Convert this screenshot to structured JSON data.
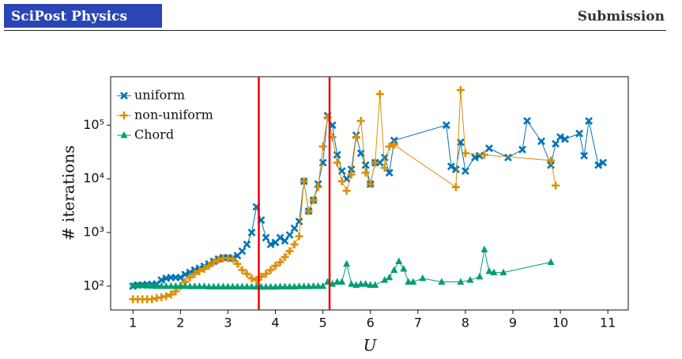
{
  "header": {
    "journal": "SciPost Physics",
    "status": "Submission"
  },
  "chart_data": {
    "type": "line",
    "xlabel": "U",
    "ylabel": "# iterations",
    "log_y": true,
    "legend": "upper left",
    "xlim": [
      0.53,
      11.43
    ],
    "xticks": [
      1,
      2,
      3,
      4,
      5,
      6,
      7,
      8,
      9,
      10,
      11
    ],
    "ylim": [
      36,
      800000
    ],
    "yticks": [
      {
        "value": 100,
        "label": "10²"
      },
      {
        "value": 1000,
        "label": "10³"
      },
      {
        "value": 10000,
        "label": "10⁴"
      },
      {
        "value": 100000,
        "label": "10⁵"
      }
    ],
    "vlines": [
      3.65,
      5.14
    ],
    "vline_color": "#e8000b",
    "series": [
      {
        "name": "uniform",
        "color": "#0173b2",
        "marker": "x",
        "x": [
          1.0,
          1.1,
          1.2,
          1.3,
          1.4,
          1.5,
          1.6,
          1.7,
          1.8,
          1.9,
          2.0,
          2.1,
          2.2,
          2.3,
          2.4,
          2.5,
          2.6,
          2.7,
          2.8,
          2.9,
          3.0,
          3.1,
          3.2,
          3.3,
          3.4,
          3.5,
          3.6,
          3.7,
          3.8,
          3.9,
          4.0,
          4.1,
          4.2,
          4.3,
          4.4,
          4.5,
          4.6,
          4.7,
          4.8,
          4.9,
          5.0,
          5.1,
          5.2,
          5.3,
          5.4,
          5.5,
          5.6,
          5.7,
          5.8,
          5.9,
          6.0,
          6.1,
          6.2,
          6.3,
          6.4,
          6.5,
          7.6,
          7.7,
          7.8,
          7.9,
          8.0,
          8.2,
          8.3,
          8.5,
          8.9,
          9.2,
          9.3,
          9.6,
          9.8,
          9.9,
          10.0,
          10.1,
          10.4,
          10.5,
          10.6,
          10.8,
          10.9
        ],
        "values": [
          100,
          105,
          105,
          108,
          108,
          110,
          130,
          140,
          145,
          145,
          145,
          165,
          180,
          200,
          215,
          235,
          260,
          290,
          320,
          340,
          340,
          330,
          370,
          450,
          600,
          1000,
          3000,
          1700,
          800,
          600,
          650,
          800,
          700,
          900,
          1200,
          1600,
          9000,
          2500,
          4000,
          8000,
          20000,
          150000,
          100000,
          28000,
          14000,
          10000,
          15000,
          65000,
          30000,
          18000,
          8000,
          20000,
          20000,
          25000,
          13000,
          52000,
          100000,
          17000,
          15000,
          48000,
          14000,
          25000,
          27000,
          37000,
          25000,
          35000,
          120000,
          50000,
          18000,
          45000,
          60000,
          55000,
          70000,
          27000,
          120000,
          18000,
          20000
        ]
      },
      {
        "name": "non-uniform",
        "color": "#de8f05",
        "marker": "plus",
        "x": [
          1.0,
          1.1,
          1.2,
          1.3,
          1.4,
          1.5,
          1.6,
          1.7,
          1.8,
          1.9,
          2.0,
          2.1,
          2.2,
          2.3,
          2.4,
          2.5,
          2.6,
          2.7,
          2.8,
          2.9,
          3.0,
          3.1,
          3.2,
          3.3,
          3.4,
          3.5,
          3.6,
          3.7,
          3.8,
          3.9,
          4.0,
          4.1,
          4.2,
          4.3,
          4.4,
          4.5,
          4.6,
          4.7,
          4.8,
          4.9,
          5.0,
          5.1,
          5.2,
          5.3,
          5.4,
          5.5,
          5.6,
          5.7,
          5.8,
          5.9,
          6.0,
          6.1,
          6.2,
          6.3,
          6.4,
          6.5,
          7.8,
          7.9,
          8.0,
          8.4,
          9.8,
          9.9
        ],
        "values": [
          57,
          57,
          57,
          57,
          57,
          60,
          62,
          65,
          70,
          80,
          100,
          120,
          145,
          170,
          190,
          210,
          240,
          280,
          310,
          330,
          330,
          320,
          260,
          200,
          170,
          140,
          130,
          150,
          170,
          200,
          240,
          280,
          350,
          450,
          600,
          850,
          9000,
          2500,
          4000,
          7000,
          40000,
          140000,
          60000,
          20000,
          9000,
          6000,
          12000,
          60000,
          120000,
          13000,
          8000,
          20000,
          380000,
          16000,
          40000,
          43000,
          7000,
          450000,
          30000,
          28000,
          22000,
          7500
        ]
      },
      {
        "name": "Chord",
        "color": "#029e73",
        "marker": "triangle",
        "x": [
          1.0,
          1.1,
          1.2,
          1.3,
          1.4,
          1.5,
          1.6,
          1.7,
          1.8,
          1.9,
          2.0,
          2.1,
          2.2,
          2.3,
          2.4,
          2.5,
          2.6,
          2.7,
          2.8,
          2.9,
          3.0,
          3.1,
          3.2,
          3.3,
          3.4,
          3.5,
          3.6,
          3.7,
          3.8,
          3.9,
          4.0,
          4.1,
          4.2,
          4.3,
          4.4,
          4.5,
          4.6,
          4.7,
          4.8,
          4.9,
          5.0,
          5.1,
          5.2,
          5.3,
          5.4,
          5.5,
          5.6,
          5.7,
          5.8,
          5.9,
          6.0,
          6.1,
          6.3,
          6.4,
          6.5,
          6.6,
          6.7,
          6.8,
          6.9,
          7.1,
          7.5,
          7.9,
          8.1,
          8.3,
          8.4,
          8.5,
          8.6,
          8.8,
          9.8
        ],
        "values": [
          102,
          103,
          103,
          102,
          101,
          100,
          100,
          100,
          100,
          100,
          100,
          100,
          99,
          99,
          99,
          99,
          98,
          98,
          98,
          98,
          98,
          98,
          98,
          98,
          98,
          98,
          97,
          97,
          97,
          97,
          97,
          98,
          98,
          98,
          98,
          99,
          99,
          99,
          100,
          100,
          100,
          120,
          110,
          120,
          120,
          260,
          110,
          105,
          110,
          110,
          105,
          105,
          130,
          145,
          200,
          290,
          210,
          120,
          120,
          140,
          120,
          120,
          130,
          150,
          480,
          190,
          180,
          180,
          280
        ]
      }
    ]
  }
}
